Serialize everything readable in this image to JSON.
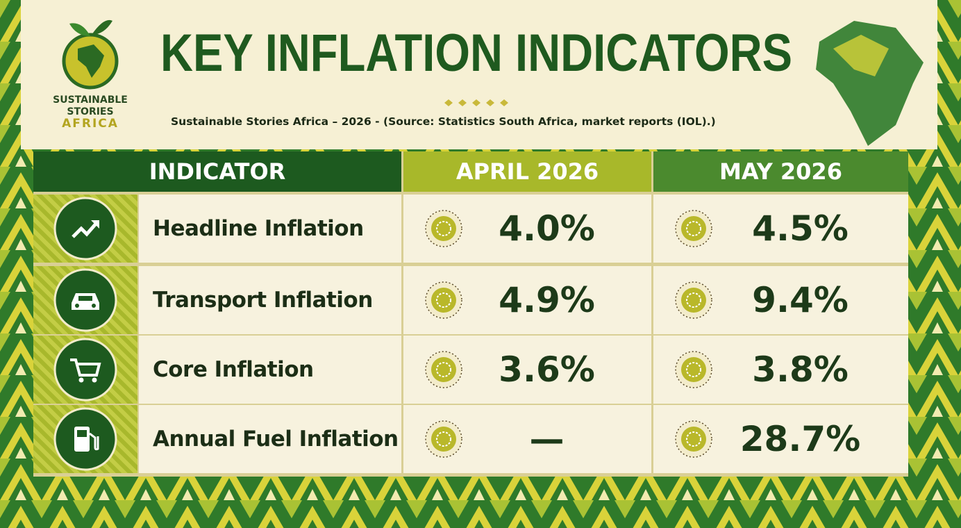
{
  "logo": {
    "lines": [
      "SUSTAINABLE",
      "STORIES",
      "AFRICA"
    ]
  },
  "header": {
    "title": "KEY INFLATION INDICATORS",
    "subtitle": "Sustainable Stories Africa – 2026 - (Source: Statistics South Africa, market reports (IOL).)"
  },
  "table": {
    "columns": [
      "INDICATOR",
      "APRIL 2026",
      "MAY 2026"
    ],
    "rows": [
      [
        "Headline Inflation",
        "4.0%",
        "4.5%"
      ],
      [
        "Transport Inflation",
        "4.9%",
        "9.4%"
      ],
      [
        "Core Inflation",
        "3.6%",
        "3.8%"
      ],
      [
        "Annual Fuel Inflation",
        "—",
        "28.7%"
      ]
    ]
  }
}
